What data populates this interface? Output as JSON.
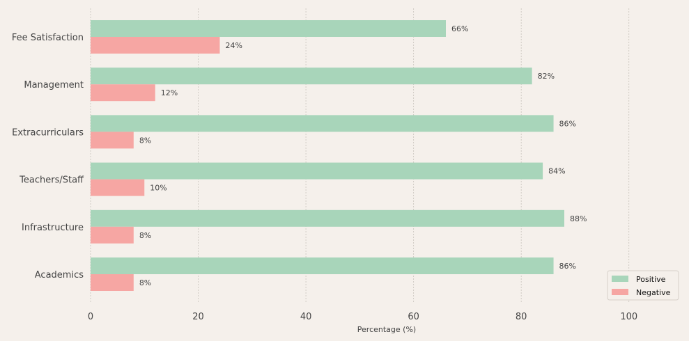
{
  "chart_data": {
    "type": "bar",
    "orientation": "horizontal",
    "categories": [
      "Academics",
      "Infrastructure",
      "Teachers/Staff",
      "Extracurriculars",
      "Management",
      "Fee Satisfaction"
    ],
    "series": [
      {
        "name": "Positive",
        "values": [
          86,
          88,
          84,
          86,
          82,
          66
        ],
        "color": "#a8d5ba"
      },
      {
        "name": "Negative",
        "values": [
          8,
          8,
          10,
          8,
          12,
          24
        ],
        "color": "#f6a6a3"
      }
    ],
    "data_labels": {
      "Positive": [
        "86%",
        "88%",
        "84%",
        "86%",
        "82%",
        "66%"
      ],
      "Negative": [
        "8%",
        "8%",
        "10%",
        "8%",
        "12%",
        "24%"
      ]
    },
    "xlabel": "Percentage (%)",
    "ylabel": "",
    "title": "",
    "xlim": [
      0,
      110
    ],
    "xticks": [
      "0",
      "20",
      "40",
      "60",
      "80",
      "100"
    ],
    "grid": "vertical dashed",
    "legend_position": "lower-right"
  }
}
